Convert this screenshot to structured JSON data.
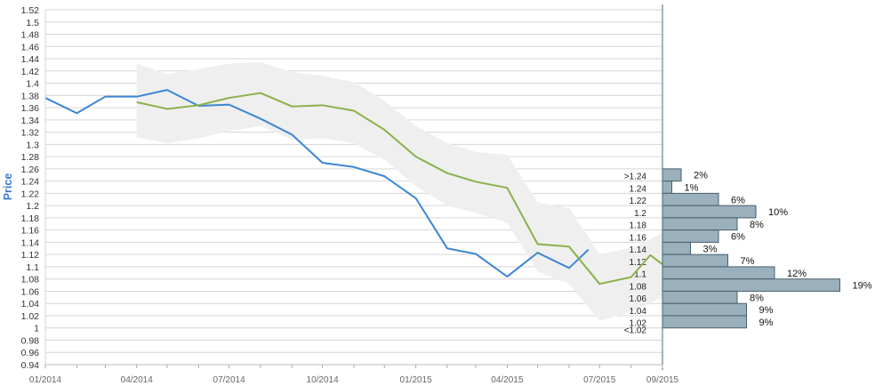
{
  "chart_data": {
    "type": "line",
    "ylabel": "Price",
    "ylim": [
      0.94,
      1.52
    ],
    "y_ticks": [
      "0.94",
      "0.96",
      "0.98",
      "1",
      "1.02",
      "1.04",
      "1.06",
      "1.08",
      "1.1",
      "1.12",
      "1.14",
      "1.16",
      "1.18",
      "1.2",
      "1.22",
      "1.24",
      "1.26",
      "1.28",
      "1.3",
      "1.32",
      "1.34",
      "1.36",
      "1.38",
      "1.4",
      "1.42",
      "1.44",
      "1.46",
      "1.48",
      "1.5",
      "1.52"
    ],
    "x_range": [
      "2014-01-01",
      "2015-09-01"
    ],
    "x_ticks": [
      {
        "label": "01/2014",
        "date": "2014-01-01"
      },
      {
        "label": "04/2014",
        "date": "2014-04-01"
      },
      {
        "label": "07/2014",
        "date": "2014-07-01"
      },
      {
        "label": "10/2014",
        "date": "2014-10-01"
      },
      {
        "label": "01/2015",
        "date": "2015-01-01"
      },
      {
        "label": "04/2015",
        "date": "2015-04-01"
      },
      {
        "label": "07/2015",
        "date": "2015-07-01"
      },
      {
        "label": "09/2015",
        "date": "2015-09-01"
      }
    ],
    "grid": true,
    "series": [
      {
        "role": "actual",
        "color": "#3b86d4",
        "points": [
          [
            "2014-01-01",
            1.376
          ],
          [
            "2014-02-01",
            1.351
          ],
          [
            "2014-03-01",
            1.378
          ],
          [
            "2014-04-01",
            1.378
          ],
          [
            "2014-05-01",
            1.389
          ],
          [
            "2014-06-01",
            1.363
          ],
          [
            "2014-07-01",
            1.365
          ],
          [
            "2014-08-01",
            1.342
          ],
          [
            "2014-09-01",
            1.316
          ],
          [
            "2014-10-01",
            1.27
          ],
          [
            "2014-11-01",
            1.263
          ],
          [
            "2014-12-01",
            1.248
          ],
          [
            "2015-01-01",
            1.212
          ],
          [
            "2015-02-01",
            1.13
          ],
          [
            "2015-03-01",
            1.121
          ],
          [
            "2015-04-01",
            1.084
          ],
          [
            "2015-05-01",
            1.123
          ],
          [
            "2015-06-01",
            1.098
          ],
          [
            "2015-06-20",
            1.128
          ]
        ]
      },
      {
        "role": "forecast",
        "color": "#8bb14a",
        "points": [
          [
            "2014-04-01",
            1.369
          ],
          [
            "2014-05-01",
            1.358
          ],
          [
            "2014-06-01",
            1.364
          ],
          [
            "2014-07-01",
            1.376
          ],
          [
            "2014-08-01",
            1.384
          ],
          [
            "2014-09-01",
            1.362
          ],
          [
            "2014-10-01",
            1.364
          ],
          [
            "2014-11-01",
            1.355
          ],
          [
            "2014-12-01",
            1.324
          ],
          [
            "2015-01-01",
            1.28
          ],
          [
            "2015-02-01",
            1.253
          ],
          [
            "2015-03-01",
            1.239
          ],
          [
            "2015-04-01",
            1.229
          ],
          [
            "2015-05-01",
            1.137
          ],
          [
            "2015-06-01",
            1.133
          ],
          [
            "2015-07-01",
            1.072
          ],
          [
            "2015-08-01",
            1.083
          ],
          [
            "2015-08-20",
            1.119
          ],
          [
            "2015-09-01",
            1.104
          ]
        ]
      }
    ],
    "band": {
      "color": "#efefef",
      "upper": [
        [
          "2014-04-01",
          1.432
        ],
        [
          "2014-05-01",
          1.415
        ],
        [
          "2014-06-01",
          1.423
        ],
        [
          "2014-07-01",
          1.432
        ],
        [
          "2014-08-01",
          1.434
        ],
        [
          "2014-09-01",
          1.418
        ],
        [
          "2014-10-01",
          1.412
        ],
        [
          "2014-11-01",
          1.402
        ],
        [
          "2014-12-01",
          1.371
        ],
        [
          "2015-01-01",
          1.33
        ],
        [
          "2015-02-01",
          1.302
        ],
        [
          "2015-03-01",
          1.288
        ],
        [
          "2015-04-01",
          1.283
        ],
        [
          "2015-05-01",
          1.205
        ],
        [
          "2015-06-01",
          1.196
        ],
        [
          "2015-07-01",
          1.121
        ],
        [
          "2015-08-01",
          1.13
        ],
        [
          "2015-09-01",
          1.155
        ]
      ],
      "lower": [
        [
          "2014-04-01",
          1.312
        ],
        [
          "2014-05-01",
          1.302
        ],
        [
          "2014-06-01",
          1.31
        ],
        [
          "2014-07-01",
          1.322
        ],
        [
          "2014-08-01",
          1.33
        ],
        [
          "2014-09-01",
          1.308
        ],
        [
          "2014-10-01",
          1.31
        ],
        [
          "2014-11-01",
          1.302
        ],
        [
          "2014-12-01",
          1.275
        ],
        [
          "2015-01-01",
          1.232
        ],
        [
          "2015-02-01",
          1.2
        ],
        [
          "2015-03-01",
          1.188
        ],
        [
          "2015-04-01",
          1.172
        ],
        [
          "2015-05-01",
          1.092
        ],
        [
          "2015-06-01",
          1.072
        ],
        [
          "2015-07-01",
          1.012
        ],
        [
          "2015-08-01",
          1.026
        ],
        [
          "2015-09-01",
          1.05
        ]
      ]
    },
    "distribution": {
      "color": "#9ab0bc",
      "border": "#4a5f6b",
      "bins": [
        {
          "label": ">1.24",
          "lo": 1.24,
          "hi": 1.26,
          "pct": "2%",
          "value": 2
        },
        {
          "label": "1.24",
          "lo": 1.22,
          "hi": 1.24,
          "pct": "1%",
          "value": 1
        },
        {
          "label": "1.22",
          "lo": 1.2,
          "hi": 1.22,
          "pct": "6%",
          "value": 6
        },
        {
          "label": "1.2",
          "lo": 1.18,
          "hi": 1.2,
          "pct": "10%",
          "value": 10
        },
        {
          "label": "1.18",
          "lo": 1.16,
          "hi": 1.18,
          "pct": "8%",
          "value": 8
        },
        {
          "label": "1.16",
          "lo": 1.14,
          "hi": 1.16,
          "pct": "6%",
          "value": 6
        },
        {
          "label": "1.14",
          "lo": 1.12,
          "hi": 1.14,
          "pct": "3%",
          "value": 3
        },
        {
          "label": "1.12",
          "lo": 1.1,
          "hi": 1.12,
          "pct": "7%",
          "value": 7
        },
        {
          "label": "1.1",
          "lo": 1.08,
          "hi": 1.1,
          "pct": "12%",
          "value": 12
        },
        {
          "label": "1.08",
          "lo": 1.06,
          "hi": 1.08,
          "pct": "19%",
          "value": 19
        },
        {
          "label": "1.06",
          "lo": 1.04,
          "hi": 1.06,
          "pct": "8%",
          "value": 8
        },
        {
          "label": "1.04",
          "lo": 1.02,
          "hi": 1.04,
          "pct": "9%",
          "value": 9
        },
        {
          "label": "1.02",
          "lo": 1.0,
          "hi": 1.02,
          "pct": "9%",
          "value": 9
        },
        {
          "label": "<1.02",
          "lo": 1.0,
          "hi": 1.0,
          "pct": "",
          "value": 0
        }
      ]
    }
  }
}
